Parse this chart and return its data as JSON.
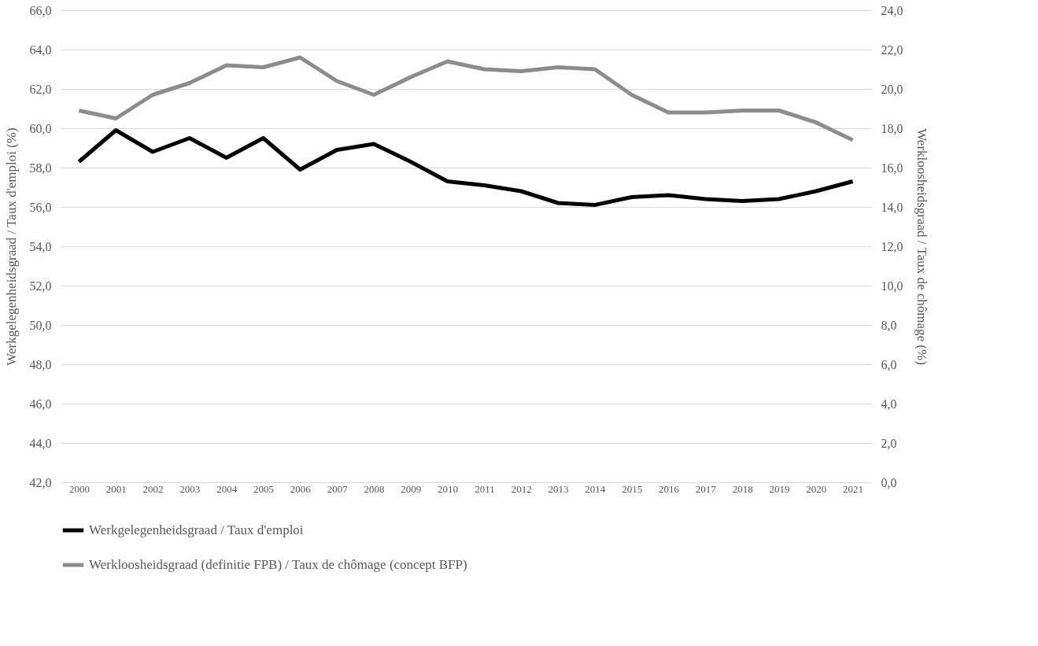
{
  "chart_data": {
    "type": "line",
    "categories": [
      "2000",
      "2001",
      "2002",
      "2003",
      "2004",
      "2005",
      "2006",
      "2007",
      "2008",
      "2009",
      "2010",
      "2011",
      "2012",
      "2013",
      "2014",
      "2015",
      "2016",
      "2017",
      "2018",
      "2019",
      "2020",
      "2021"
    ],
    "ylabel": "Werkgelegenheidsgraad / Taux d'emploi (%)",
    "y2label": "Werkloosheidsgraad / Taux de chômage (%)",
    "series": [
      {
        "name": "Werkgelegenheidsgraad / Taux d'emploi",
        "color": "#000000",
        "values": [
          58.3,
          59.9,
          58.8,
          59.5,
          58.5,
          59.5,
          57.9,
          58.9,
          59.2,
          58.3,
          57.3,
          57.1,
          56.8,
          56.2,
          56.1,
          56.5,
          56.6,
          56.4,
          56.3,
          56.4,
          56.8,
          57.3
        ]
      },
      {
        "name": "Werkloosheidsgraad (definitie FPB) / Taux de chômage (concept BFP)",
        "color": "#8c8c8c",
        "axis": "y2",
        "values": [
          18.9,
          18.5,
          19.7,
          20.3,
          21.2,
          21.1,
          21.6,
          20.4,
          19.7,
          20.6,
          21.4,
          21.0,
          20.9,
          21.1,
          21.0,
          19.7,
          18.8,
          18.8,
          18.9,
          18.9,
          18.3,
          17.4
        ]
      }
    ],
    "ylim": [
      42,
      66
    ],
    "yticks": [
      {
        "value": 42,
        "label": "42,0"
      },
      {
        "value": 44,
        "label": "44,0"
      },
      {
        "value": 46,
        "label": "46,0"
      },
      {
        "value": 48,
        "label": "48,0"
      },
      {
        "value": 50,
        "label": "50,0"
      },
      {
        "value": 52,
        "label": "52,0"
      },
      {
        "value": 54,
        "label": "54,0"
      },
      {
        "value": 56,
        "label": "56,0"
      },
      {
        "value": 58,
        "label": "58,0"
      },
      {
        "value": 60,
        "label": "60,0"
      },
      {
        "value": 62,
        "label": "62,0"
      },
      {
        "value": 64,
        "label": "64,0"
      },
      {
        "value": 66,
        "label": "66,0"
      }
    ],
    "y2lim": [
      0,
      24
    ],
    "y2ticks": [
      {
        "value": 0,
        "label": "0,0"
      },
      {
        "value": 2,
        "label": "2,0"
      },
      {
        "value": 4,
        "label": "4,0"
      },
      {
        "value": 6,
        "label": "6,0"
      },
      {
        "value": 8,
        "label": "8,0"
      },
      {
        "value": 10,
        "label": "10,0"
      },
      {
        "value": 12,
        "label": "12,0"
      },
      {
        "value": 14,
        "label": "14,0"
      },
      {
        "value": 16,
        "label": "16,0"
      },
      {
        "value": 18,
        "label": "18,0"
      },
      {
        "value": 20,
        "label": "20,0"
      },
      {
        "value": 22,
        "label": "22,0"
      },
      {
        "value": 24,
        "label": "24,0"
      }
    ],
    "grid": "y",
    "legend": "bottom",
    "marker": "none",
    "line_style": "solid"
  }
}
